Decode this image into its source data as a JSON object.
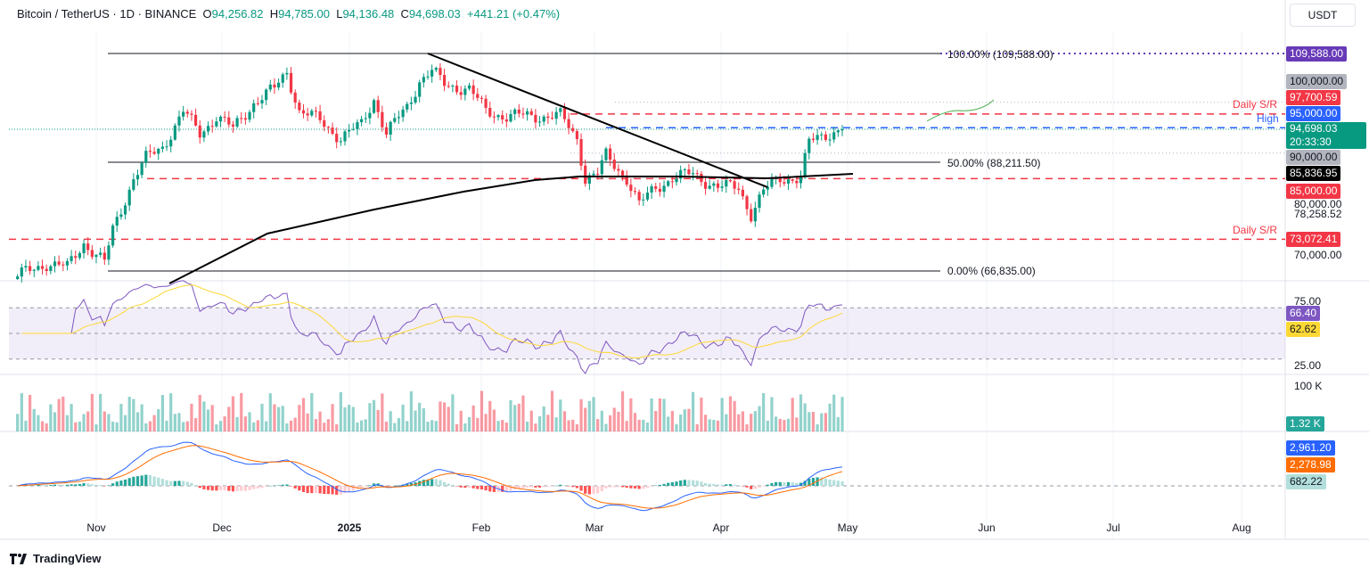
{
  "header": {
    "symbol": "Bitcoin / TetherUS · 1D · BINANCE",
    "open": "94,256.82",
    "high": "94,785.00",
    "low": "94,136.48",
    "close": "94,698.03",
    "change": "+441.21 (+0.47%)"
  },
  "currency": "USDT",
  "price_tags": [
    {
      "label": "109,588.00",
      "color": "#673ab7"
    },
    {
      "label": "100,000.00",
      "color": "#b2b5be"
    },
    {
      "label": "97,700.59",
      "color": "#f23645"
    },
    {
      "label": "95,000.00",
      "color": "#2962ff"
    },
    {
      "label": "94,698.03",
      "color": "#089981"
    },
    {
      "label": "20:33:30",
      "color": "#089981"
    },
    {
      "label": "90,000.00",
      "color": "#b2b5be"
    },
    {
      "label": "85,836.95",
      "color": "#000000"
    },
    {
      "label": "85,000.00",
      "color": "#f23645"
    },
    {
      "label": "73,072.41",
      "color": "#f23645"
    }
  ],
  "price_axis": [
    "80,000.00",
    "78,258.52",
    "70,000.00"
  ],
  "annotations": {
    "sr1": "Daily S/R",
    "high": "High",
    "sr2": "Daily S/R",
    "fib100": "100.00% (109,588.00)",
    "fib50": "50.00% (88,211.50)",
    "fib0": "0.00% (66,835.00)"
  },
  "rsi": {
    "axis": [
      "75.00",
      "25.00"
    ],
    "value": "66.40",
    "ma": "62.62",
    "value_color": "#7e57c2",
    "ma_color": "#fdd835"
  },
  "volume": {
    "axis": "100 K",
    "value": "1.32 K",
    "color": "#26a69a"
  },
  "macd": {
    "macd": "2,961.20",
    "signal": "2,278.98",
    "hist": "682.22",
    "macd_color": "#2962ff",
    "signal_color": "#ff6d00",
    "hist_color": "#b2dfdb"
  },
  "time_axis": [
    {
      "label": "Nov",
      "bold": false
    },
    {
      "label": "Dec",
      "bold": false
    },
    {
      "label": "2025",
      "bold": true
    },
    {
      "label": "Feb",
      "bold": false
    },
    {
      "label": "Mar",
      "bold": false
    },
    {
      "label": "Apr",
      "bold": false
    },
    {
      "label": "May",
      "bold": false
    },
    {
      "label": "Jun",
      "bold": false
    },
    {
      "label": "Jul",
      "bold": false
    },
    {
      "label": "Aug",
      "bold": false
    }
  ],
  "footer": "TradingView",
  "chart_data": {
    "type": "candlestick",
    "title": "Bitcoin / TetherUS · 1D · BINANCE",
    "ylim": [
      66835,
      109588
    ],
    "up_color": "#089981",
    "down_color": "#f23645",
    "closes": [
      [
        "2024-10-13",
        65800
      ],
      [
        "2024-10-20",
        68400
      ],
      [
        "2024-10-25",
        67500
      ],
      [
        "2024-10-29",
        72450
      ],
      [
        "2024-11-03",
        68400
      ],
      [
        "2024-11-05",
        74900
      ],
      [
        "2024-11-10",
        85100
      ],
      [
        "2024-11-13",
        88900
      ],
      [
        "2024-11-17",
        91200
      ],
      [
        "2024-11-22",
        98200
      ],
      [
        "2024-11-26",
        93800
      ],
      [
        "2024-11-30",
        97300
      ],
      [
        "2024-12-04",
        94700
      ],
      [
        "2024-12-09",
        99950
      ],
      [
        "2024-12-14",
        102600
      ],
      [
        "2024-12-17",
        106100
      ],
      [
        "2024-12-20",
        98200
      ],
      [
        "2024-12-25",
        96450
      ],
      [
        "2024-12-30",
        92950
      ],
      [
        "2025-01-04",
        95600
      ],
      [
        "2025-01-07",
        100800
      ],
      [
        "2025-01-10",
        93800
      ],
      [
        "2025-01-15",
        99100
      ],
      [
        "2025-01-18",
        104300
      ],
      [
        "2025-01-21",
        106100
      ],
      [
        "2025-01-24",
        103500
      ],
      [
        "2025-01-30",
        102600
      ],
      [
        "2025-02-03",
        98200
      ],
      [
        "2025-02-08",
        97300
      ],
      [
        "2025-02-14",
        97300
      ],
      [
        "2025-02-21",
        97300
      ],
      [
        "2025-02-25",
        92950
      ],
      [
        "2025-02-27",
        85100
      ],
      [
        "2025-03-02",
        85900
      ],
      [
        "2025-03-04",
        89450
      ],
      [
        "2025-03-09",
        85100
      ],
      [
        "2025-03-12",
        79800
      ],
      [
        "2025-03-16",
        83300
      ],
      [
        "2025-03-20",
        85100
      ],
      [
        "2025-03-25",
        85900
      ],
      [
        "2025-03-31",
        83300
      ],
      [
        "2025-04-05",
        83300
      ],
      [
        "2025-04-08",
        78050
      ],
      [
        "2025-04-11",
        82400
      ],
      [
        "2025-04-15",
        85100
      ],
      [
        "2025-04-20",
        85100
      ],
      [
        "2025-04-22",
        92100
      ],
      [
        "2025-04-26",
        93800
      ],
      [
        "2025-04-30",
        94698
      ]
    ],
    "levels": {
      "fib_100": 109588,
      "fib_50": 88211.5,
      "fib_0": 66835,
      "daily_sr_upper": 97700.59,
      "high": 95000,
      "round_100k": 100000,
      "round_90k": 90000,
      "ma200": 85836.95,
      "support_85k": 85000,
      "daily_sr_lower": 73072.41
    },
    "trendline": [
      [
        "2025-01-20",
        109588
      ],
      [
        "2025-04-12",
        83300
      ]
    ],
    "x_ticks": [
      "Nov",
      "Dec",
      "2025",
      "Feb",
      "Mar",
      "Apr",
      "May",
      "Jun",
      "Jul",
      "Aug"
    ]
  }
}
